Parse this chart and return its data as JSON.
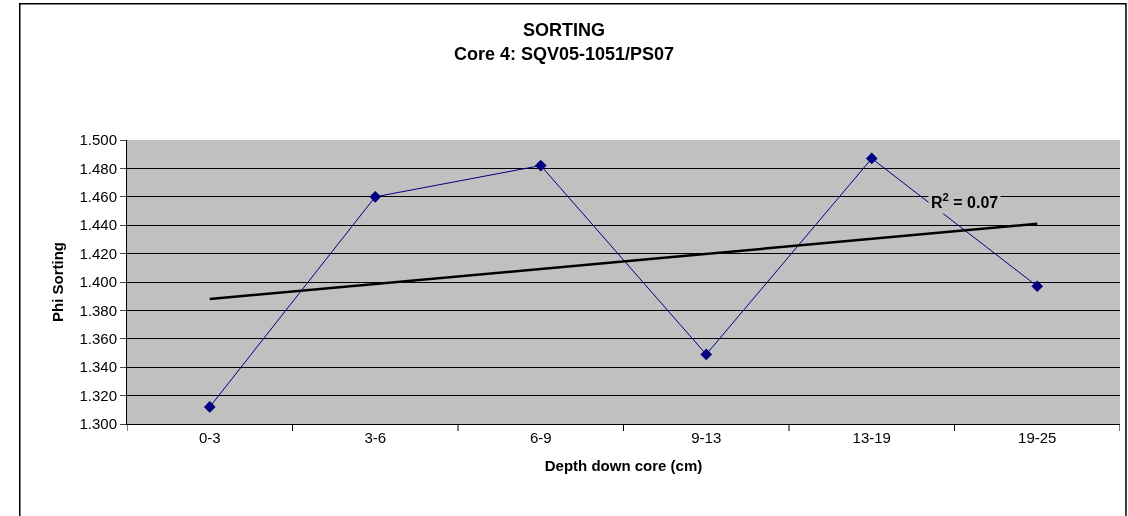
{
  "chart_data": {
    "type": "line",
    "title": "SORTING",
    "subtitle": "Core 4: SQV05-1051/PS07",
    "xlabel": "Depth down core (cm)",
    "ylabel": "Phi Sorting",
    "categories": [
      "0-3",
      "3-6",
      "6-9",
      "9-13",
      "13-19",
      "19-25"
    ],
    "series": [
      {
        "color": "#000080",
        "values": [
          1.312,
          1.46,
          1.482,
          1.349,
          1.487,
          1.397
        ],
        "marker": "diamond"
      },
      {
        "type": "line",
        "color": "#000000",
        "x": [
          "0-3",
          "19-25"
        ],
        "values": [
          1.388,
          1.441
        ],
        "marker": "none"
      }
    ],
    "ylim": [
      1.3,
      1.5
    ],
    "yticks": [
      {
        "value": 1.3,
        "label": "1.300"
      },
      {
        "value": 1.32,
        "label": "1.320"
      },
      {
        "value": 1.34,
        "label": "1.340"
      },
      {
        "value": 1.36,
        "label": "1.360"
      },
      {
        "value": 1.38,
        "label": "1.380"
      },
      {
        "value": 1.4,
        "label": "1.400"
      },
      {
        "value": 1.42,
        "label": "1.420"
      },
      {
        "value": 1.44,
        "label": "1.440"
      },
      {
        "value": 1.46,
        "label": "1.460"
      },
      {
        "value": 1.48,
        "label": "1.480"
      },
      {
        "value": 1.5,
        "label": "1.500"
      }
    ],
    "grid": "y",
    "annotations": [
      "R$^{2}$ = 0.07"
    ]
  }
}
